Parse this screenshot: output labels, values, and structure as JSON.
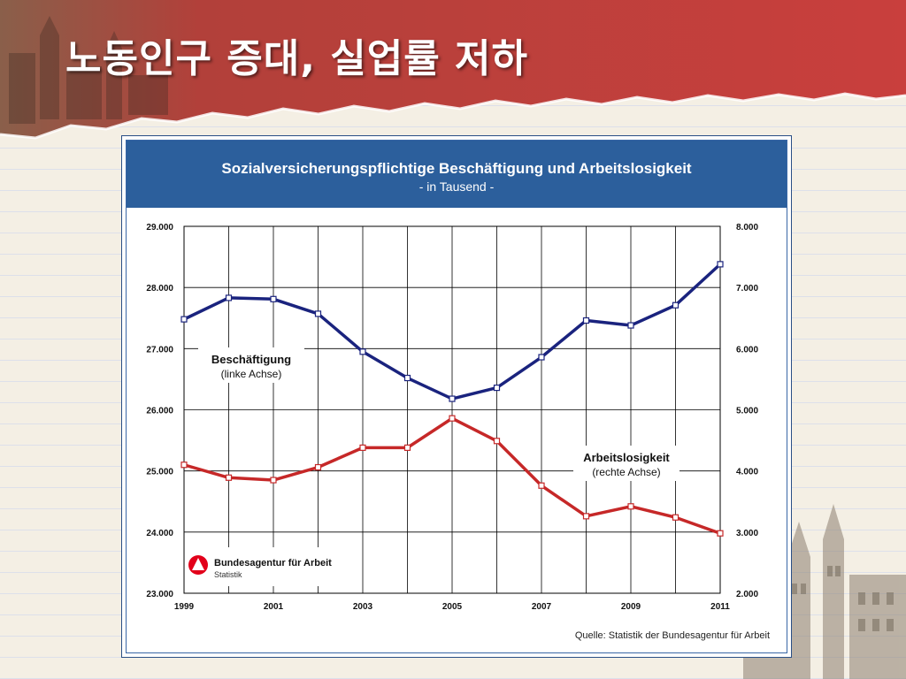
{
  "slide": {
    "title": "노동인구 증대, 실업률 저하",
    "colors": {
      "banner": "#c03a3a",
      "paper": "#f4efe4",
      "header": "#2c5f9c"
    }
  },
  "logo": {
    "name": "Bundesagentur für Arbeit",
    "subtitle": "Statistik",
    "icon": "bundesagentur-logo-icon",
    "color": "#e2001a"
  },
  "source": "Quelle: Statistik der Bundesagentur für Arbeit",
  "chart_data": {
    "type": "line",
    "title": "Sozialversicherungspflichtige Beschäftigung und Arbeitslosigkeit",
    "subtitle": "- in Tausend -",
    "x": [
      1999,
      2000,
      2001,
      2002,
      2003,
      2004,
      2005,
      2006,
      2007,
      2008,
      2009,
      2010,
      2011
    ],
    "x_tick_labels": [
      "1999",
      "2001",
      "2003",
      "2005",
      "2007",
      "2009",
      "2011"
    ],
    "x_tick_values": [
      1999,
      2001,
      2003,
      2005,
      2007,
      2009,
      2011
    ],
    "left_axis": {
      "ylim": [
        23000,
        29000
      ],
      "tick_values": [
        23000,
        24000,
        25000,
        26000,
        27000,
        28000,
        29000
      ],
      "tick_labels": [
        "23.000",
        "24.000",
        "25.000",
        "26.000",
        "27.000",
        "28.000",
        "29.000"
      ]
    },
    "right_axis": {
      "ylim": [
        2000,
        8000
      ],
      "tick_values": [
        2000,
        3000,
        4000,
        5000,
        6000,
        7000,
        8000
      ],
      "tick_labels": [
        "2.000",
        "3.000",
        "4.000",
        "5.000",
        "6.000",
        "7.000",
        "8.000"
      ]
    },
    "grid": true,
    "series": [
      {
        "name": "Beschäftigung",
        "axis_note": "(linke Achse)",
        "axis": "left",
        "color": "#1a237e",
        "values": [
          27480,
          27830,
          27810,
          27570,
          26950,
          26520,
          26180,
          26360,
          26860,
          27460,
          27380,
          27710,
          28380
        ]
      },
      {
        "name": "Arbeitslosigkeit",
        "axis_note": "(rechte Achse)",
        "axis": "right",
        "color": "#c62828",
        "values": [
          4100,
          3890,
          3850,
          4060,
          4380,
          4380,
          4860,
          4490,
          3760,
          3260,
          3420,
          3240,
          2980
        ]
      }
    ]
  }
}
